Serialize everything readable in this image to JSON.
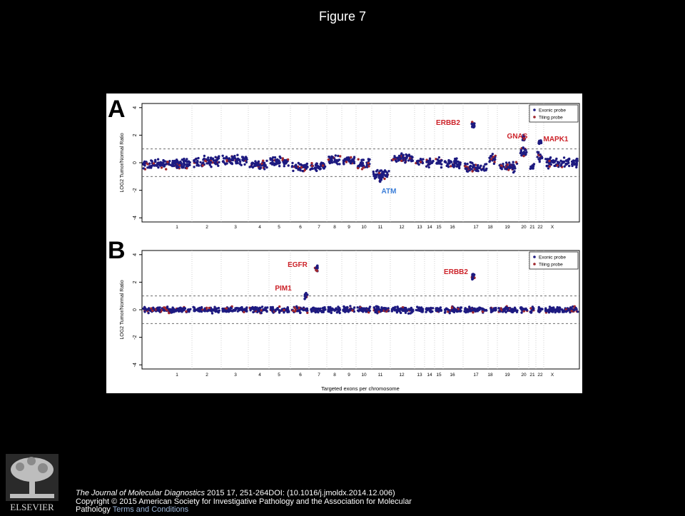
{
  "slide": {
    "title": "Figure 7"
  },
  "figure": {
    "shared": {
      "ylabel": "LOG2 Tumor/Normal Ratio",
      "yticks": [
        4,
        2,
        0,
        -2,
        -4
      ],
      "ylim": [
        -4.3,
        4.3
      ],
      "threshold_lines": [
        1,
        -1
      ],
      "chromosomes": [
        "1",
        "2",
        "3",
        "4",
        "5",
        "6",
        "7",
        "8",
        "9",
        "10",
        "11",
        "12",
        "13",
        "14",
        "15",
        "16",
        "17",
        "18",
        "19",
        "20",
        "21",
        "22",
        "X"
      ],
      "legend": [
        "Exonic probe",
        "Tiling probe"
      ],
      "colors": {
        "exonic": "#1d1a80",
        "tiling": "#a0262c",
        "gene_label_red": "#cc2229",
        "gene_label_blue": "#3a7dd8"
      }
    },
    "panels": [
      {
        "letter": "A",
        "xlabel": "",
        "gene_labels": [
          {
            "text": "ERBB2",
            "color": "red"
          },
          {
            "text": "GNAS",
            "color": "red"
          },
          {
            "text": "MAPK1",
            "color": "red"
          },
          {
            "text": "ATM",
            "color": "blue"
          }
        ]
      },
      {
        "letter": "B",
        "xlabel": "Targeted exons per chromosome",
        "gene_labels": [
          {
            "text": "EGFR",
            "color": "red"
          },
          {
            "text": "PIM1",
            "color": "red"
          },
          {
            "text": "ERBB2",
            "color": "red"
          }
        ]
      }
    ]
  },
  "chart_data": [
    {
      "type": "scatter",
      "panel": "A",
      "title": "",
      "ylabel": "LOG2 Tumor/Normal Ratio",
      "xlabel": "",
      "ylim": [
        -4,
        4
      ],
      "grid": false,
      "legend_position": "top-right",
      "series": [
        {
          "name": "Exonic probe"
        },
        {
          "name": "Tiling probe"
        }
      ],
      "segments": [
        {
          "chr": "1",
          "log2": -0.1
        },
        {
          "chr": "2",
          "log2": 0.1
        },
        {
          "chr": "3",
          "log2": 0.2
        },
        {
          "chr": "4",
          "log2": -0.2
        },
        {
          "chr": "5",
          "log2": 0.1
        },
        {
          "chr": "6",
          "log2": -0.3
        },
        {
          "chr": "7",
          "log2": -0.3
        },
        {
          "chr": "8",
          "log2": 0.2
        },
        {
          "chr": "9",
          "log2": 0.2
        },
        {
          "chr": "10",
          "log2": -0.1
        },
        {
          "chr": "11",
          "log2": -0.8
        },
        {
          "chr": "12",
          "log2": 0.3
        },
        {
          "chr": "13",
          "log2": 0.1
        },
        {
          "chr": "14",
          "log2": 0.0
        },
        {
          "chr": "15",
          "log2": 0.0
        },
        {
          "chr": "16",
          "log2": 0.0
        },
        {
          "chr": "17",
          "log2": -0.4
        },
        {
          "chr": "18",
          "log2": 0.3
        },
        {
          "chr": "19",
          "log2": -0.3
        },
        {
          "chr": "20",
          "log2": 0.8
        },
        {
          "chr": "21",
          "log2": -0.3
        },
        {
          "chr": "22",
          "log2": 0.4
        },
        {
          "chr": "X",
          "log2": 0.0
        }
      ],
      "amplifications": [
        {
          "gene": "ERBB2",
          "chr": "17",
          "log2": 2.7
        },
        {
          "gene": "GNAS",
          "chr": "20",
          "log2": 1.8
        },
        {
          "gene": "MAPK1",
          "chr": "22",
          "log2": 1.5
        },
        {
          "gene": "ATM",
          "chr": "11",
          "log2": -1.2
        }
      ]
    },
    {
      "type": "scatter",
      "panel": "B",
      "title": "",
      "ylabel": "LOG2 Tumor/Normal Ratio",
      "xlabel": "Targeted exons per chromosome",
      "ylim": [
        -4,
        4
      ],
      "grid": false,
      "legend_position": "top-right",
      "series": [
        {
          "name": "Exonic probe"
        },
        {
          "name": "Tiling probe"
        }
      ],
      "segments": [
        {
          "chr": "1",
          "log2": 0.0
        },
        {
          "chr": "2",
          "log2": 0.0
        },
        {
          "chr": "3",
          "log2": 0.0
        },
        {
          "chr": "4",
          "log2": 0.0
        },
        {
          "chr": "5",
          "log2": 0.0
        },
        {
          "chr": "6",
          "log2": 0.0
        },
        {
          "chr": "7",
          "log2": 0.0
        },
        {
          "chr": "8",
          "log2": 0.0
        },
        {
          "chr": "9",
          "log2": 0.0
        },
        {
          "chr": "10",
          "log2": 0.0
        },
        {
          "chr": "11",
          "log2": 0.0
        },
        {
          "chr": "12",
          "log2": 0.0
        },
        {
          "chr": "13",
          "log2": 0.0
        },
        {
          "chr": "14",
          "log2": 0.0
        },
        {
          "chr": "15",
          "log2": 0.0
        },
        {
          "chr": "16",
          "log2": 0.0
        },
        {
          "chr": "17",
          "log2": 0.0
        },
        {
          "chr": "18",
          "log2": 0.0
        },
        {
          "chr": "19",
          "log2": 0.0
        },
        {
          "chr": "20",
          "log2": 0.0
        },
        {
          "chr": "21",
          "log2": 0.0
        },
        {
          "chr": "22",
          "log2": 0.0
        },
        {
          "chr": "X",
          "log2": 0.0
        }
      ],
      "amplifications": [
        {
          "gene": "EGFR",
          "chr": "7",
          "log2": 3.0
        },
        {
          "gene": "PIM1",
          "chr": "6",
          "log2": 1.0
        },
        {
          "gene": "ERBB2",
          "chr": "17",
          "log2": 2.4
        }
      ]
    }
  ],
  "footer": {
    "publisher_logo_text": "ELSEVIER",
    "citation_journal": "The Journal of Molecular Diagnostics",
    "citation_rest": " 2015 17, 251-264DOI: (10.1016/j.jmoldx.2014.12.006) ",
    "copyright": "Copyright © 2015 American Society for Investigative Pathology and the Association for Molecular",
    "copyright_cont": "Pathology ",
    "terms_link": "Terms and Conditions"
  }
}
